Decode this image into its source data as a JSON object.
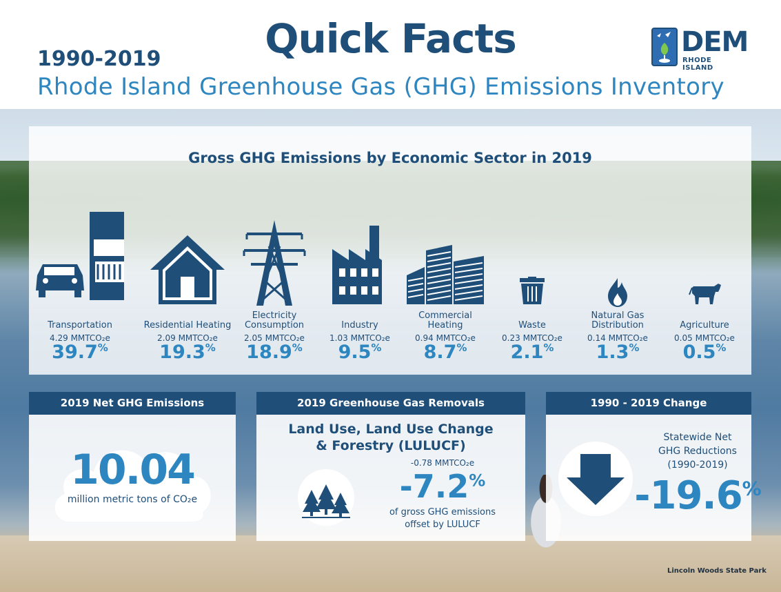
{
  "header": {
    "title": "Quick Facts",
    "years": "1990-2019",
    "subtitle": "Rhode Island Greenhouse Gas (GHG) Emissions Inventory",
    "logo_text": "DEM",
    "logo_subtext": "RHODE ISLAND"
  },
  "panel": {
    "title": "Gross GHG Emissions by Economic Sector in 2019",
    "sectors": [
      {
        "label": "Transportation",
        "amount": "4.29 MMTCO₂e",
        "pct": "39.7",
        "icon": "car-truck-icon"
      },
      {
        "label": "Residential Heating",
        "amount": "2.09 MMTCO₂e",
        "pct": "19.3",
        "icon": "house-icon"
      },
      {
        "label": "Electricity Consumption",
        "amount": "2.05 MMTCO₂e",
        "pct": "18.9",
        "icon": "power-tower-icon"
      },
      {
        "label": "Industry",
        "amount": "1.03 MMTCO₂e",
        "pct": "9.5",
        "icon": "factory-icon"
      },
      {
        "label": "Commercial Heating",
        "amount": "0.94 MMTCO₂e",
        "pct": "8.7",
        "icon": "buildings-icon"
      },
      {
        "label": "Waste",
        "amount": "0.23 MMTCO₂e",
        "pct": "2.1",
        "icon": "trash-can-icon"
      },
      {
        "label": "Natural Gas Distribution",
        "amount": "0.14 MMTCO₂e",
        "pct": "1.3",
        "icon": "flame-icon"
      },
      {
        "label": "Agriculture",
        "amount": "0.05 MMTCO₂e",
        "pct": "0.5",
        "icon": "cow-icon"
      }
    ],
    "pct_sign": "%"
  },
  "net": {
    "heading": "2019 Net GHG Emissions",
    "value": "10.04",
    "unit": "million metric tons of CO₂e"
  },
  "removals": {
    "heading": "2019 Greenhouse Gas Removals",
    "title_line1": "Land Use, Land Use Change",
    "title_line2": "& Forestry (LULUCF)",
    "amount": "-0.78 MMTCO₂e",
    "pct": "-7.2",
    "desc_line1": "of gross GHG emissions",
    "desc_line2": "offset by LULUCF"
  },
  "change": {
    "heading": "1990 - 2019 Change",
    "label_line1": "Statewide Net",
    "label_line2": "GHG Reductions",
    "label_line3": "(1990-2019)",
    "pct": "-19.6"
  },
  "photo_caption": "Lincoln Woods State Park",
  "colors": {
    "navy": "#1f4e79",
    "blue": "#2e86c1"
  }
}
